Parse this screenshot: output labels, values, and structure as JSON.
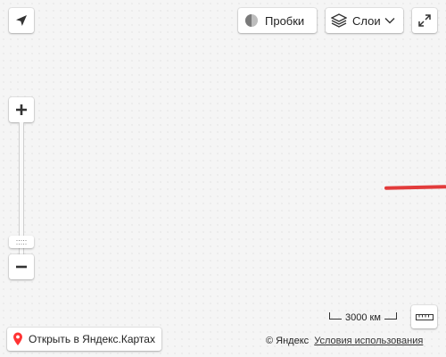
{
  "map": {
    "traffic_label": "Пробки",
    "layers_label": "Слои",
    "open_in_maps_label": "Открыть в Яндекс.Картах",
    "scale_label": "3000 км",
    "copyright_label": "© Яндекс",
    "terms_label": "Условия использования",
    "zoom_handle_label": ":::::",
    "route_color": "#e23b3b",
    "icons": {
      "geolocation": "location-arrow-icon",
      "traffic": "traffic-light-icon",
      "layers": "layers-icon",
      "chevron": "chevron-down-icon",
      "fullscreen": "expand-icon",
      "zoom_in": "plus-icon",
      "zoom_out": "minus-icon",
      "ruler": "ruler-icon",
      "pin": "map-pin-icon"
    }
  }
}
